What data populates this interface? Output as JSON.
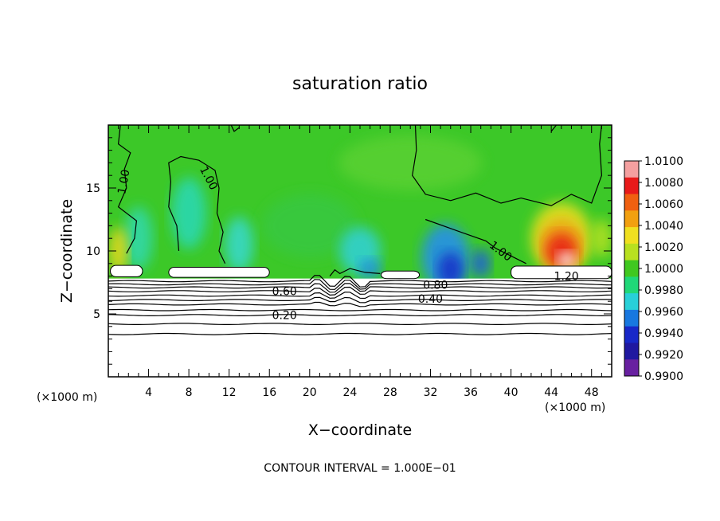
{
  "chart_data": {
    "type": "heatmap",
    "title": "saturation ratio",
    "xlabel": "X−coordinate",
    "ylabel": "Z−coordinate",
    "x_unit_left": "(×1000 m)",
    "x_unit_right": "(×1000 m)",
    "xlim": [
      0,
      50
    ],
    "ylim": [
      0,
      20
    ],
    "x_ticks": [
      4,
      8,
      12,
      16,
      20,
      24,
      28,
      32,
      36,
      40,
      44,
      48
    ],
    "y_ticks": [
      5,
      10,
      15
    ],
    "colorbar": {
      "min": 0.99,
      "max": 1.01,
      "levels": [
        "1.0100",
        "1.0080",
        "1.0060",
        "1.0040",
        "1.0020",
        "1.0000",
        "0.9980",
        "0.9960",
        "0.9940",
        "0.9920",
        "0.9900"
      ],
      "colors": [
        "#f4a0a0",
        "#e81a1a",
        "#f06010",
        "#f2a010",
        "#f0e020",
        "#b8e020",
        "#40c820",
        "#20d878",
        "#28d0d8",
        "#1878e0",
        "#1828c8",
        "#2018a0",
        "#6820a0"
      ]
    },
    "contour_labels": [
      {
        "text": "1.00",
        "x": 1.5,
        "z": 15.5
      },
      {
        "text": "1.00",
        "x": 10.0,
        "z": 15.8
      },
      {
        "text": "1.00",
        "x": 39.0,
        "z": 10.0
      },
      {
        "text": "1.20",
        "x": 45.5,
        "z": 8.0
      },
      {
        "text": "0.80",
        "x": 32.5,
        "z": 7.3
      },
      {
        "text": "0.60",
        "x": 17.5,
        "z": 6.8
      },
      {
        "text": "0.40",
        "x": 32.0,
        "z": 6.2
      },
      {
        "text": "0.20",
        "x": 17.5,
        "z": 4.9
      }
    ],
    "stable_layer_contours_z": [
      7.6,
      7.35,
      7.1,
      6.8,
      6.45,
      6.1,
      5.75,
      5.3,
      4.9,
      4.2,
      3.4
    ],
    "contour_interval": "CONTOUR INTERVAL = 1.000E−01"
  }
}
